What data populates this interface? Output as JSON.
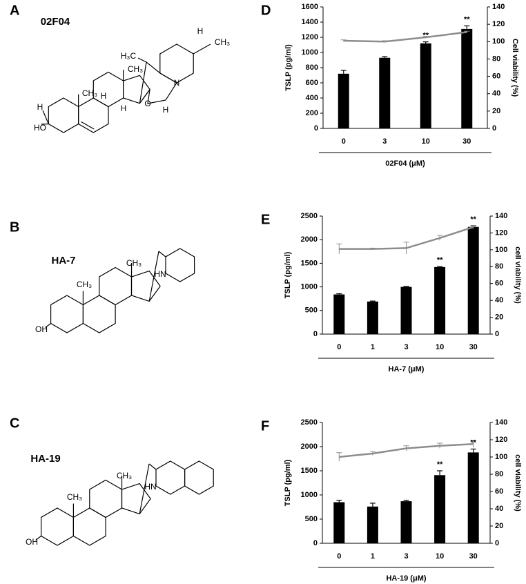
{
  "panels": [
    {
      "label": "A",
      "name": "02F04",
      "atoms": [
        "H₃C",
        "H",
        "CH₃",
        "N",
        "CH₃",
        "CH₃",
        "O",
        "H",
        "H",
        "H",
        "H",
        "HO"
      ]
    },
    {
      "label": "B",
      "name": "HA-7",
      "atoms": [
        "CH₃",
        "CH₃",
        "HN",
        "OH"
      ]
    },
    {
      "label": "C",
      "name": "HA-19",
      "atoms": [
        "CH₃",
        "CH₃",
        "HN",
        "OH"
      ]
    }
  ],
  "chart_data": [
    {
      "type": "bar",
      "panel": "D",
      "categories": [
        "0",
        "3",
        "10",
        "30"
      ],
      "xlabel": "02F04 (μM)",
      "ylabel": "TSLP (pg/ml)",
      "y2label": "Cell viability (%)",
      "ylim": [
        0,
        1600
      ],
      "yticks": [
        0,
        200,
        400,
        600,
        800,
        1000,
        1200,
        1400,
        1600
      ],
      "y2lim": [
        0,
        140
      ],
      "y2ticks": [
        0,
        20,
        40,
        60,
        80,
        100,
        120,
        140
      ],
      "series": [
        {
          "type": "bar",
          "color": "#000000",
          "values": [
            720,
            930,
            1120,
            1310
          ],
          "errors": [
            45,
            15,
            20,
            40
          ]
        },
        {
          "type": "line",
          "axis": "y2",
          "color": "#8c8c8c",
          "values": [
            101,
            100,
            105,
            111
          ],
          "errors": [
            1,
            1,
            1,
            1
          ]
        }
      ],
      "annotations": [
        {
          "text": "**",
          "category": "10"
        },
        {
          "text": "**",
          "category": "30"
        }
      ]
    },
    {
      "type": "bar",
      "panel": "E",
      "categories": [
        "0",
        "1",
        "3",
        "10",
        "30"
      ],
      "xlabel": "HA-7 (μM)",
      "ylabel": "TSLP (pg/ml)",
      "y2label": "cell viability (%)",
      "ylim": [
        0,
        2500
      ],
      "yticks": [
        0,
        500,
        1000,
        1500,
        2000,
        2500
      ],
      "y2lim": [
        0,
        140
      ],
      "y2ticks": [
        0,
        20,
        40,
        60,
        80,
        100,
        120,
        140
      ],
      "series": [
        {
          "type": "bar",
          "color": "#000000",
          "values": [
            840,
            690,
            1000,
            1420,
            2270
          ],
          "errors": [
            15,
            10,
            10,
            10,
            25
          ]
        },
        {
          "type": "line",
          "axis": "y2",
          "color": "#8c8c8c",
          "values": [
            101,
            101,
            102,
            114,
            127
          ],
          "errors": [
            6,
            1,
            7,
            3,
            2
          ]
        }
      ],
      "annotations": [
        {
          "text": "**",
          "category": "10"
        },
        {
          "text": "**",
          "category": "30"
        }
      ]
    },
    {
      "type": "bar",
      "panel": "F",
      "categories": [
        "0",
        "1",
        "3",
        "10",
        "30"
      ],
      "xlabel": "HA-19 (μM)",
      "ylabel": "TSLP (pg/ml)",
      "y2label": "cell viability (%)",
      "ylim": [
        0,
        2500
      ],
      "yticks": [
        0,
        500,
        1000,
        1500,
        2000,
        2500
      ],
      "y2lim": [
        0,
        140
      ],
      "y2ticks": [
        0,
        20,
        40,
        60,
        80,
        100,
        120,
        140
      ],
      "series": [
        {
          "type": "bar",
          "color": "#000000",
          "values": [
            850,
            760,
            870,
            1410,
            1880
          ],
          "errors": [
            40,
            70,
            20,
            90,
            70
          ]
        },
        {
          "type": "line",
          "axis": "y2",
          "color": "#8c8c8c",
          "values": [
            100,
            104,
            110,
            113,
            115
          ],
          "errors": [
            5,
            2,
            3,
            3,
            4
          ]
        }
      ],
      "annotations": [
        {
          "text": "**",
          "category": "10"
        },
        {
          "text": "**",
          "category": "30"
        }
      ]
    }
  ]
}
